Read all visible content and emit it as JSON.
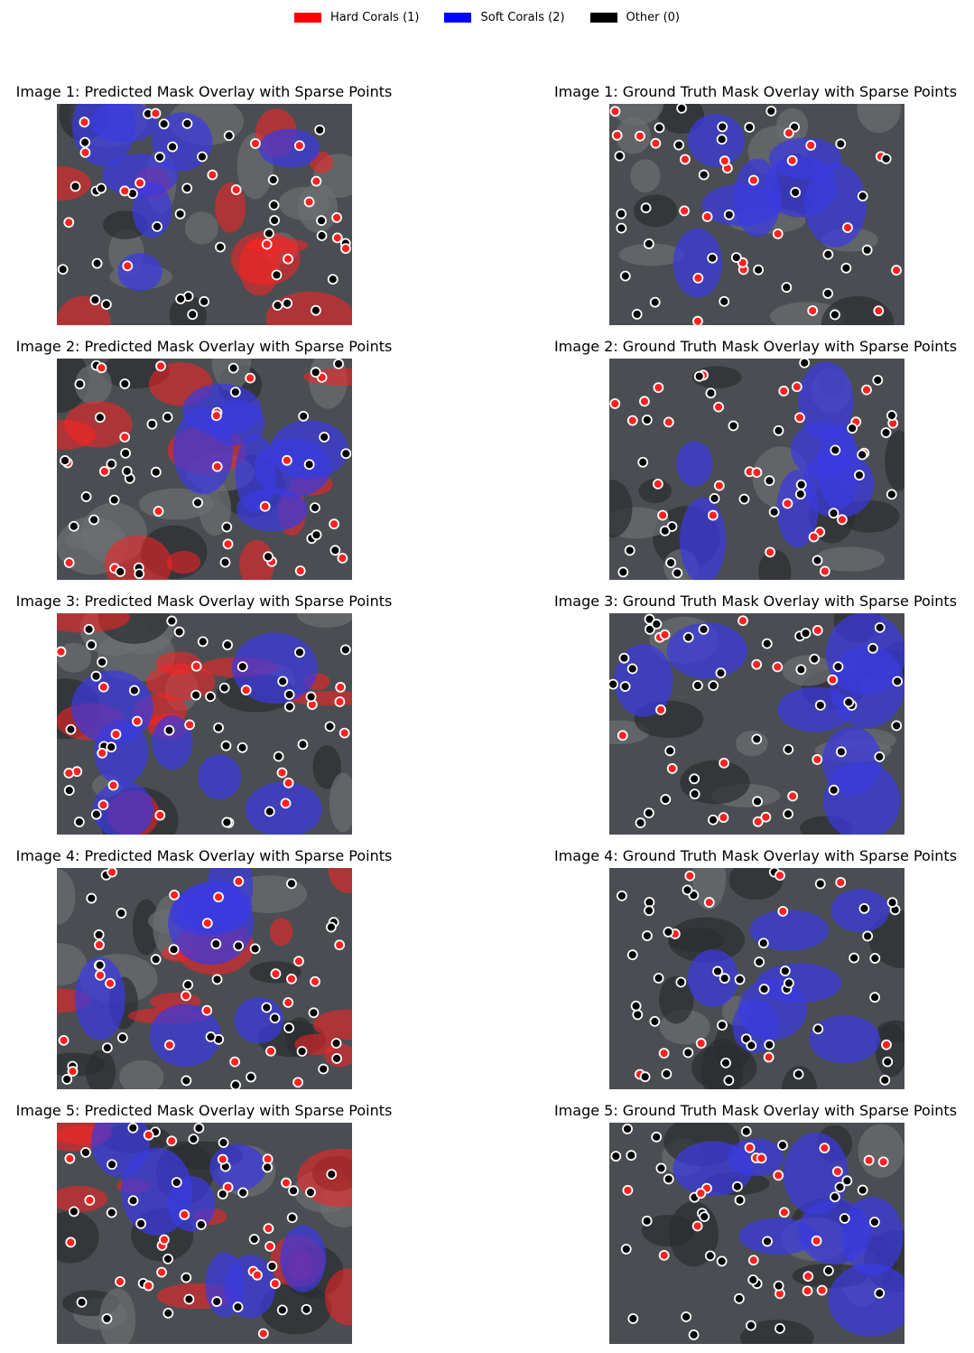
{
  "legend": {
    "items": [
      {
        "label": "Hard Corals (1)",
        "color": "#ff0000"
      },
      {
        "label": "Soft Corals (2)",
        "color": "#0000ff"
      },
      {
        "label": "Other (0)",
        "color": "#000000"
      }
    ]
  },
  "rows": [
    {
      "left_title": "Image 1: Predicted Mask Overlay with Sparse Points",
      "right_title": "Image 1: Ground Truth Mask Overlay with Sparse Points"
    },
    {
      "left_title": "Image 2: Predicted Mask Overlay with Sparse Points",
      "right_title": "Image 2: Ground Truth Mask Overlay with Sparse Points"
    },
    {
      "left_title": "Image 3: Predicted Mask Overlay with Sparse Points",
      "right_title": "Image 3: Ground Truth Mask Overlay with Sparse Points"
    },
    {
      "left_title": "Image 4: Predicted Mask Overlay with Sparse Points",
      "right_title": "Image 4: Ground Truth Mask Overlay with Sparse Points"
    },
    {
      "left_title": "Image 5: Predicted Mask Overlay with Sparse Points",
      "right_title": "Image 5: Ground Truth Mask Overlay with Sparse Points"
    }
  ],
  "colors": {
    "hard_coral": "#ff2020",
    "soft_coral": "#3a3ae0",
    "other_point": "#000000",
    "point_outline": "#ffffff",
    "reef_background": "#4a4e52"
  }
}
